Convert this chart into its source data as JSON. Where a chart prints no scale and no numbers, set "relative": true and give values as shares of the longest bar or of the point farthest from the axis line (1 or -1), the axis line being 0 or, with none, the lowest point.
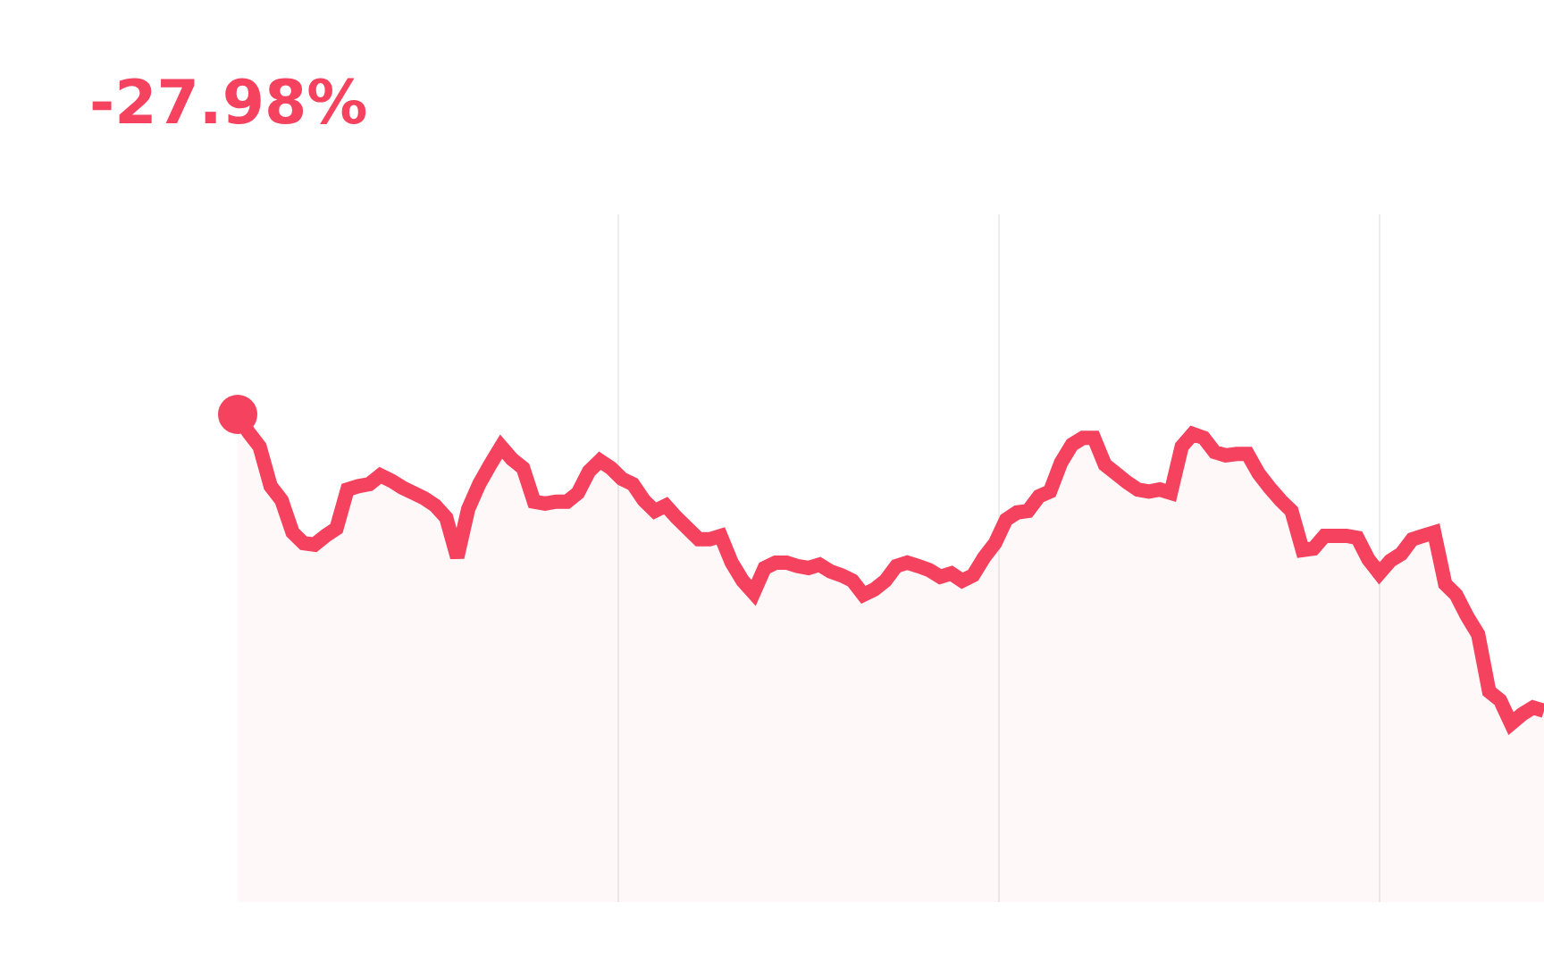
{
  "chart_data": {
    "type": "area",
    "relative": true,
    "grid": "x",
    "annotations": [
      "-27.98%"
    ],
    "categories": [
      null,
      null,
      null,
      null,
      null,
      null,
      null,
      null,
      null,
      null,
      null,
      null,
      null,
      null,
      null,
      null,
      null,
      null,
      null,
      null,
      null,
      null,
      null,
      null,
      null,
      null,
      null,
      null,
      null,
      null,
      null,
      null,
      null,
      null,
      null,
      null,
      null,
      null,
      null,
      null,
      null,
      null,
      null,
      null,
      null,
      null,
      null,
      null,
      null,
      null,
      null,
      null,
      null,
      null,
      null,
      null,
      null,
      null,
      null,
      null,
      null,
      null,
      null,
      null,
      null,
      null,
      null,
      null,
      null,
      null,
      null,
      null,
      null,
      null,
      null,
      null,
      null,
      null,
      null,
      null,
      null,
      null,
      null,
      null,
      null,
      null,
      null,
      null,
      null,
      null,
      null,
      null,
      null,
      null,
      null,
      null,
      null,
      null,
      null,
      null,
      null,
      null,
      null,
      null,
      null,
      null,
      null,
      null,
      null,
      null,
      null,
      null,
      null,
      null,
      null,
      null,
      null,
      null,
      null,
      null
    ],
    "series": [
      {
        "color": "#f4425f",
        "values": [
          1.0,
          0.963,
          0.934,
          0.853,
          0.824,
          0.758,
          0.736,
          0.733,
          0.751,
          0.766,
          0.846,
          0.853,
          0.857,
          0.875,
          0.864,
          0.85,
          0.839,
          0.828,
          0.813,
          0.788,
          0.707,
          0.806,
          0.857,
          0.897,
          0.934,
          0.908,
          0.89,
          0.821,
          0.817,
          0.821,
          0.821,
          0.839,
          0.883,
          0.905,
          0.89,
          0.868,
          0.857,
          0.824,
          0.802,
          0.813,
          0.788,
          0.766,
          0.744,
          0.744,
          0.751,
          0.696,
          0.659,
          0.634,
          0.685,
          0.696,
          0.696,
          0.689,
          0.685,
          0.692,
          0.678,
          0.67,
          0.659,
          0.63,
          0.641,
          0.659,
          0.689,
          0.696,
          0.689,
          0.681,
          0.667,
          0.674,
          0.659,
          0.67,
          0.707,
          0.736,
          0.784,
          0.799,
          0.802,
          0.832,
          0.842,
          0.901,
          0.938,
          0.952,
          0.952,
          0.897,
          0.879,
          0.861,
          0.846,
          0.842,
          0.846,
          0.839,
          0.934,
          0.96,
          0.952,
          0.923,
          0.916,
          0.919,
          0.919,
          0.879,
          0.85,
          0.824,
          0.802,
          0.722,
          0.725,
          0.751,
          0.751,
          0.751,
          0.747,
          0.703,
          0.674,
          0.7,
          0.714,
          0.744,
          0.751,
          0.758,
          0.652,
          0.63,
          0.586,
          0.549,
          0.432,
          0.414,
          0.366,
          0.385,
          0.399,
          0.392
        ]
      }
    ]
  }
}
